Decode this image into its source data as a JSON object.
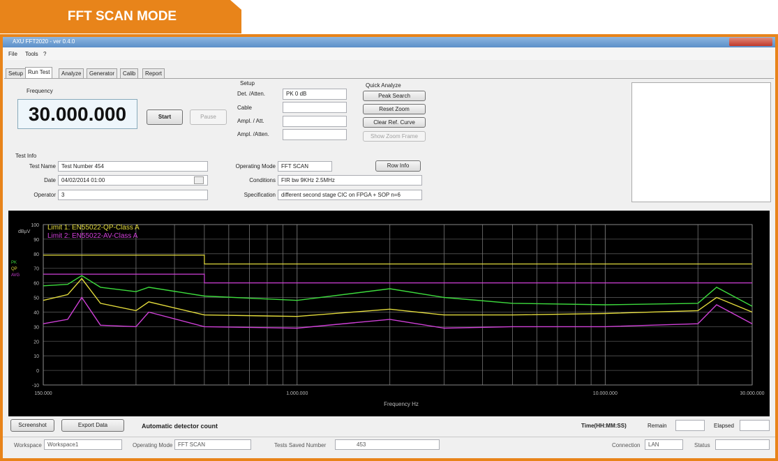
{
  "header": {
    "title": "FFT SCAN MODE"
  },
  "window": {
    "title": "AXU FFT2020 - ver 0.4.0"
  },
  "menu": [
    "File",
    "Tools",
    "?"
  ],
  "tabs": [
    "Setup",
    "Run Test",
    "Analyze",
    "Generator",
    "Calib",
    "Report"
  ],
  "frequency": {
    "label": "Frequency",
    "value": "30.000.000"
  },
  "run_buttons": [
    "Start",
    "Pause"
  ],
  "setup": {
    "title": "Setup",
    "rows": [
      {
        "label": "Det. /Atten.",
        "value": "PK 0 dB"
      },
      {
        "label": "Cable"
      },
      {
        "label": "Ampl. / Att."
      },
      {
        "label": "Ampl. /Atten."
      }
    ]
  },
  "quick_analyze": {
    "title": "Quick Analyze",
    "buttons": [
      "Peak Search",
      "Reset Zoom",
      "Clear Ref. Curve",
      "Show Zoom Frame"
    ]
  },
  "test_info": {
    "title": "Test Info",
    "rows": [
      {
        "label": "Test Name",
        "value": "Test Number 454"
      },
      {
        "label": "Date",
        "value": "04/02/2014 01:00"
      },
      {
        "label": "Operator",
        "value": "3"
      }
    ]
  },
  "run_info": {
    "button": "Row Info",
    "rows": [
      {
        "label": "Operating Mode",
        "value": "FFT SCAN"
      },
      {
        "label": "Conditions",
        "value": "FIR bw 9KHz 2.5MHz"
      },
      {
        "label": "Specification",
        "value": "different second stage CIC on FPGA + SOP n=6"
      }
    ]
  },
  "plot": {
    "y_label": "dBµV",
    "x_label": "Frequency Hz",
    "log_x": true,
    "xlim": [
      150000,
      30000000
    ],
    "ylim": [
      -10,
      100
    ],
    "yticks": [
      100,
      90,
      80,
      70,
      60,
      50,
      40,
      30,
      20,
      10,
      0,
      -10
    ],
    "xticks": [
      {
        "value": 150000,
        "label": "150.000"
      },
      {
        "value": 1000000,
        "label": "1.000.000"
      },
      {
        "value": 10000000,
        "label": "10.000.000"
      },
      {
        "value": 30000000,
        "label": "30.000.000"
      }
    ],
    "xgrid": [
      200000,
      300000,
      400000,
      500000,
      600000,
      700000,
      800000,
      900000,
      2000000,
      3000000,
      4000000,
      5000000,
      6000000,
      7000000,
      8000000,
      9000000,
      20000000
    ],
    "limits": [
      {
        "name": "Limit 1: EN55022-QP-Class A",
        "color": "#e4dc3c",
        "x": [
          150000,
          500000,
          500000,
          30000000
        ],
        "values": [
          79,
          79,
          73,
          73
        ]
      },
      {
        "name": "Limit 2: EN55022-AV-Class A",
        "color": "#d040d8",
        "x": [
          150000,
          500000,
          500000,
          30000000
        ],
        "values": [
          66,
          66,
          60,
          60
        ]
      }
    ],
    "freq": [
      150000,
      180000,
      200000,
      230000,
      300000,
      330000,
      500000,
      1000000,
      2000000,
      3000000,
      5000000,
      10000000,
      20000000,
      23000000,
      30000000
    ],
    "traces": [
      {
        "name": "PK",
        "color": "#3ddc3d",
        "values": [
          58,
          59,
          65,
          57,
          54,
          57,
          51,
          48,
          56,
          50,
          46,
          45,
          46,
          57,
          44
        ]
      },
      {
        "name": "QP",
        "color": "#e4dc3c",
        "values": [
          48,
          52,
          63,
          46,
          41,
          47,
          38,
          37,
          42,
          38,
          38,
          39,
          41,
          50,
          40
        ]
      },
      {
        "name": "AVG",
        "color": "#d040d8",
        "values": [
          32,
          35,
          50,
          31,
          30,
          40,
          30,
          29,
          35,
          29,
          30,
          30,
          32,
          45,
          32
        ]
      }
    ]
  },
  "bottom": {
    "buttons": [
      "Screenshot",
      "Export Data"
    ],
    "message": "Automatic detector count",
    "time_label": "Time(HH:MM:SS)",
    "remain_label": "Remain",
    "elapsed_label": "Elapsed"
  },
  "status_bar": {
    "workspace": {
      "label": "Workspace",
      "value": "Workspace1"
    },
    "operating_mode": {
      "label": "Operating Mode",
      "value": "FFT SCAN"
    },
    "tests_saved": {
      "label": "Tests Saved Number",
      "value": "453"
    },
    "connection": {
      "label": "Connection",
      "value": "LAN"
    },
    "status": {
      "label": "Status"
    }
  }
}
